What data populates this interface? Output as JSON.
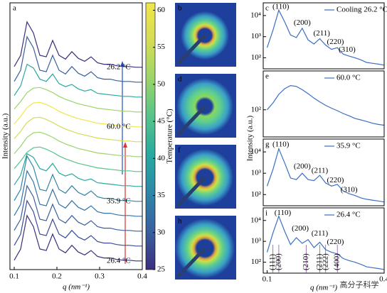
{
  "chart_data": [
    {
      "type": "waterfall",
      "letter": "a",
      "xlabel": "q (nm⁻¹)",
      "ylabel": "Intensity (a.u.)",
      "xlim": [
        0.09,
        0.4
      ],
      "xticks": [
        0.1,
        0.2,
        0.3,
        0.4
      ],
      "x": [
        0.1,
        0.115,
        0.13,
        0.145,
        0.16,
        0.175,
        0.19,
        0.205,
        0.22,
        0.235,
        0.25,
        0.265,
        0.28,
        0.295,
        0.31,
        0.325,
        0.34,
        0.355,
        0.37,
        0.385,
        0.4
      ],
      "series": [
        {
          "color": "#3b2e7e",
          "values": [
            0.5,
            2.0,
            6.5,
            5.0,
            2.0,
            1.8,
            4.0,
            2.0,
            1.5,
            2.5,
            1.6,
            1.2,
            1.8,
            1.0,
            0.8,
            0.8,
            0.6,
            0.5,
            0.5,
            0.4,
            0.4
          ]
        },
        {
          "color": "#3a4b94",
          "values": [
            0.5,
            2.0,
            6.5,
            5.0,
            2.0,
            1.8,
            4.0,
            2.0,
            1.5,
            2.5,
            1.6,
            1.2,
            1.8,
            1.0,
            0.8,
            0.8,
            0.6,
            0.5,
            0.5,
            0.4,
            0.4
          ]
        },
        {
          "color": "#3a5fa0",
          "values": [
            0.5,
            2.0,
            6.5,
            5.0,
            2.0,
            1.8,
            4.0,
            2.0,
            1.5,
            2.5,
            1.6,
            1.2,
            1.8,
            1.0,
            0.8,
            0.8,
            0.6,
            0.5,
            0.5,
            0.4,
            0.4
          ]
        },
        {
          "color": "#3373a6",
          "values": [
            0.5,
            2.0,
            6.5,
            5.0,
            2.0,
            1.8,
            4.0,
            2.0,
            1.5,
            2.5,
            1.6,
            1.2,
            1.8,
            1.0,
            0.8,
            0.8,
            0.6,
            0.5,
            0.5,
            0.4,
            0.4
          ]
        },
        {
          "color": "#2e86a8",
          "values": [
            0.5,
            2.0,
            6.5,
            5.0,
            2.0,
            1.8,
            4.0,
            2.0,
            1.5,
            2.5,
            1.6,
            1.2,
            1.8,
            1.0,
            0.8,
            0.8,
            0.6,
            0.5,
            0.5,
            0.4,
            0.4
          ]
        },
        {
          "color": "#27a9a0",
          "values": [
            0.6,
            1.9,
            4.8,
            4.3,
            2.8,
            2.5,
            3.5,
            2.2,
            1.8,
            2.1,
            1.5,
            1.2,
            1.4,
            0.9,
            0.8,
            0.7,
            0.6,
            0.5,
            0.5,
            0.4,
            0.4
          ]
        },
        {
          "color": "#56c38a",
          "values": [
            0.8,
            1.8,
            3.0,
            3.6,
            3.7,
            3.4,
            3.0,
            2.5,
            2.1,
            1.8,
            1.5,
            1.3,
            1.1,
            0.9,
            0.8,
            0.7,
            0.6,
            0.5,
            0.5,
            0.4,
            0.4
          ]
        },
        {
          "color": "#9ad46a",
          "values": [
            0.8,
            1.8,
            3.0,
            3.6,
            3.7,
            3.4,
            3.0,
            2.5,
            2.1,
            1.8,
            1.5,
            1.3,
            1.1,
            0.9,
            0.8,
            0.7,
            0.6,
            0.5,
            0.5,
            0.4,
            0.4
          ]
        },
        {
          "color": "#d4dc55",
          "values": [
            0.8,
            1.8,
            3.0,
            3.6,
            3.7,
            3.4,
            3.0,
            2.5,
            2.1,
            1.8,
            1.5,
            1.3,
            1.1,
            0.9,
            0.8,
            0.7,
            0.6,
            0.5,
            0.5,
            0.4,
            0.4
          ]
        },
        {
          "color": "#f0e64a",
          "values": [
            0.8,
            1.8,
            3.0,
            3.6,
            3.7,
            3.4,
            3.0,
            2.5,
            2.1,
            1.8,
            1.5,
            1.3,
            1.1,
            0.9,
            0.8,
            0.7,
            0.6,
            0.5,
            0.5,
            0.4,
            0.4
          ]
        },
        {
          "color": "#9ad46a",
          "values": [
            0.8,
            1.8,
            3.0,
            3.6,
            3.7,
            3.4,
            3.0,
            2.5,
            2.1,
            1.8,
            1.5,
            1.3,
            1.1,
            0.9,
            0.8,
            0.7,
            0.6,
            0.5,
            0.5,
            0.4,
            0.4
          ]
        },
        {
          "color": "#27a9a0",
          "values": [
            0.6,
            1.9,
            4.8,
            4.3,
            2.8,
            2.5,
            3.5,
            2.2,
            1.8,
            2.1,
            1.5,
            1.2,
            1.4,
            0.9,
            0.8,
            0.7,
            0.6,
            0.5,
            0.5,
            0.4,
            0.4
          ]
        },
        {
          "color": "#3a5fa0",
          "values": [
            0.5,
            2.0,
            6.5,
            5.0,
            2.0,
            1.8,
            4.0,
            2.0,
            1.5,
            2.5,
            1.6,
            1.2,
            1.8,
            1.0,
            0.8,
            0.8,
            0.6,
            0.5,
            0.5,
            0.4,
            0.4
          ]
        },
        {
          "color": "#3b2e7e",
          "values": [
            0.5,
            2.0,
            6.5,
            5.0,
            2.0,
            1.8,
            4.0,
            2.0,
            1.5,
            2.5,
            1.6,
            1.2,
            1.8,
            1.0,
            0.8,
            0.8,
            0.6,
            0.5,
            0.5,
            0.4,
            0.4
          ]
        }
      ],
      "annotations": [
        {
          "text": "26.2 °C",
          "color": "#e03030"
        },
        {
          "text": "60.0 °C",
          "color": "#e03030"
        },
        {
          "text": "35.9 °C",
          "color": "#e03030"
        },
        {
          "text": "26.4 °C",
          "color": "#e03030"
        }
      ],
      "colorbar": {
        "label": "Temperature (°C)",
        "lim": [
          25,
          61
        ],
        "ticks": [
          25,
          30,
          35,
          40,
          45,
          50,
          55,
          60
        ],
        "colors": [
          "#3b2e7e",
          "#3a5fa0",
          "#2e86a8",
          "#27a9a0",
          "#56c38a",
          "#9ad46a",
          "#d4dc55",
          "#f0e64a"
        ]
      }
    },
    {
      "type": "line",
      "letter": "c",
      "log_y": true,
      "xlim": [
        0.09,
        0.4
      ],
      "ylim": [
        30,
        40000
      ],
      "yticks": [
        {
          "value": 100,
          "label": "10²"
        },
        {
          "value": 1000,
          "label": "10³"
        },
        {
          "value": 10000,
          "label": "10⁴"
        }
      ],
      "x": [
        0.1,
        0.115,
        0.13,
        0.145,
        0.16,
        0.175,
        0.19,
        0.205,
        0.22,
        0.235,
        0.25,
        0.265,
        0.28,
        0.295,
        0.31,
        0.325,
        0.34,
        0.355,
        0.37,
        0.385,
        0.4
      ],
      "series": [
        {
          "name": "Cooling 26.2 °C",
          "color": "#3a6fc4",
          "values": [
            300,
            2000,
            18000,
            5000,
            1200,
            900,
            2500,
            700,
            450,
            800,
            400,
            250,
            300,
            150,
            120,
            100,
            80,
            60,
            55,
            50,
            45
          ]
        }
      ],
      "annotations": [
        {
          "text": "(110)",
          "x": 0.135,
          "y": 25000
        },
        {
          "text": "(200)",
          "x": 0.19,
          "y": 4500
        },
        {
          "text": "(211)",
          "x": 0.24,
          "y": 1400
        },
        {
          "text": "(220)",
          "x": 0.275,
          "y": 550
        },
        {
          "text": "(310)",
          "x": 0.305,
          "y": 230
        }
      ]
    },
    {
      "type": "line",
      "letter": "e",
      "log_y": true,
      "xlim": [
        0.09,
        0.4
      ],
      "ylim": [
        20,
        1000
      ],
      "yticks": [
        {
          "value": 100,
          "label": "10²"
        }
      ],
      "x": [
        0.1,
        0.115,
        0.13,
        0.145,
        0.16,
        0.175,
        0.19,
        0.205,
        0.22,
        0.235,
        0.25,
        0.265,
        0.28,
        0.295,
        0.31,
        0.325,
        0.34,
        0.355,
        0.37,
        0.385,
        0.4
      ],
      "series": [
        {
          "name": "60.0 °C",
          "color": "#3a6fc4",
          "values": [
            100,
            150,
            250,
            350,
            420,
            400,
            330,
            260,
            200,
            160,
            130,
            110,
            95,
            80,
            70,
            60,
            55,
            50,
            45,
            42,
            40
          ]
        }
      ],
      "annotations": []
    },
    {
      "type": "line",
      "letter": "g",
      "log_y": true,
      "xlim": [
        0.09,
        0.4
      ],
      "ylim": [
        30,
        40000
      ],
      "yticks": [
        {
          "value": 100,
          "label": "10²"
        },
        {
          "value": 1000,
          "label": "10³"
        },
        {
          "value": 10000,
          "label": "10⁴"
        }
      ],
      "x": [
        0.1,
        0.115,
        0.13,
        0.145,
        0.16,
        0.175,
        0.19,
        0.205,
        0.22,
        0.235,
        0.25,
        0.265,
        0.28,
        0.295,
        0.31,
        0.325,
        0.34,
        0.355,
        0.37,
        0.385,
        0.4
      ],
      "series": [
        {
          "name": "35.9 °C",
          "color": "#3a6fc4",
          "values": [
            250,
            1500,
            14000,
            3000,
            600,
            500,
            1000,
            500,
            450,
            800,
            350,
            250,
            300,
            150,
            110,
            90,
            70,
            60,
            55,
            50,
            45
          ]
        }
      ],
      "annotations": [
        {
          "text": "(110)",
          "x": 0.135,
          "y": 22000
        },
        {
          "text": "(200)",
          "x": 0.19,
          "y": 2000
        },
        {
          "text": "(211)",
          "x": 0.235,
          "y": 1300
        },
        {
          "text": "(220)",
          "x": 0.275,
          "y": 450
        },
        {
          "text": "(310)",
          "x": 0.31,
          "y": 160
        }
      ]
    },
    {
      "type": "line",
      "letter": "i",
      "log_y": true,
      "xlabel": "q (nm⁻¹)",
      "xlim": [
        0.09,
        0.4
      ],
      "ylim": [
        30,
        40000
      ],
      "xticks": [
        0.1,
        0.4
      ],
      "yticks": [
        {
          "value": 100,
          "label": "10²"
        },
        {
          "value": 1000,
          "label": "10³"
        },
        {
          "value": 10000,
          "label": "10⁴"
        }
      ],
      "x": [
        0.1,
        0.115,
        0.13,
        0.145,
        0.16,
        0.175,
        0.19,
        0.205,
        0.22,
        0.235,
        0.25,
        0.265,
        0.28,
        0.295,
        0.31,
        0.325,
        0.34,
        0.355,
        0.37,
        0.385,
        0.4
      ],
      "series": [
        {
          "name": "26.4 °C",
          "color": "#3a6fc4",
          "values": [
            300,
            2500,
            16000,
            3000,
            700,
            1500,
            800,
            1200,
            500,
            900,
            400,
            300,
            250,
            150,
            120,
            100,
            80,
            60,
            55,
            50,
            45
          ]
        }
      ],
      "annotations": [
        {
          "text": "(110)",
          "x": 0.14,
          "y": 22000
        },
        {
          "text": "(200)",
          "x": 0.185,
          "y": 4000
        },
        {
          "text": "(211)",
          "x": 0.235,
          "y": 2300
        },
        {
          "text": "(220)",
          "x": 0.275,
          "y": 900
        }
      ],
      "reflections": [
        {
          "text": "(111)",
          "x": 0.115
        },
        {
          "text": "(200)",
          "x": 0.13
        },
        {
          "text": "(210)",
          "x": 0.2
        },
        {
          "text": "(211)",
          "x": 0.235
        },
        {
          "text": "(222)",
          "x": 0.25
        },
        {
          "text": "(400)",
          "x": 0.28
        }
      ]
    }
  ],
  "patterns": [
    {
      "letter": "b"
    },
    {
      "letter": "d"
    },
    {
      "letter": "f"
    },
    {
      "letter": "h"
    }
  ],
  "watermark": "高分子科学"
}
